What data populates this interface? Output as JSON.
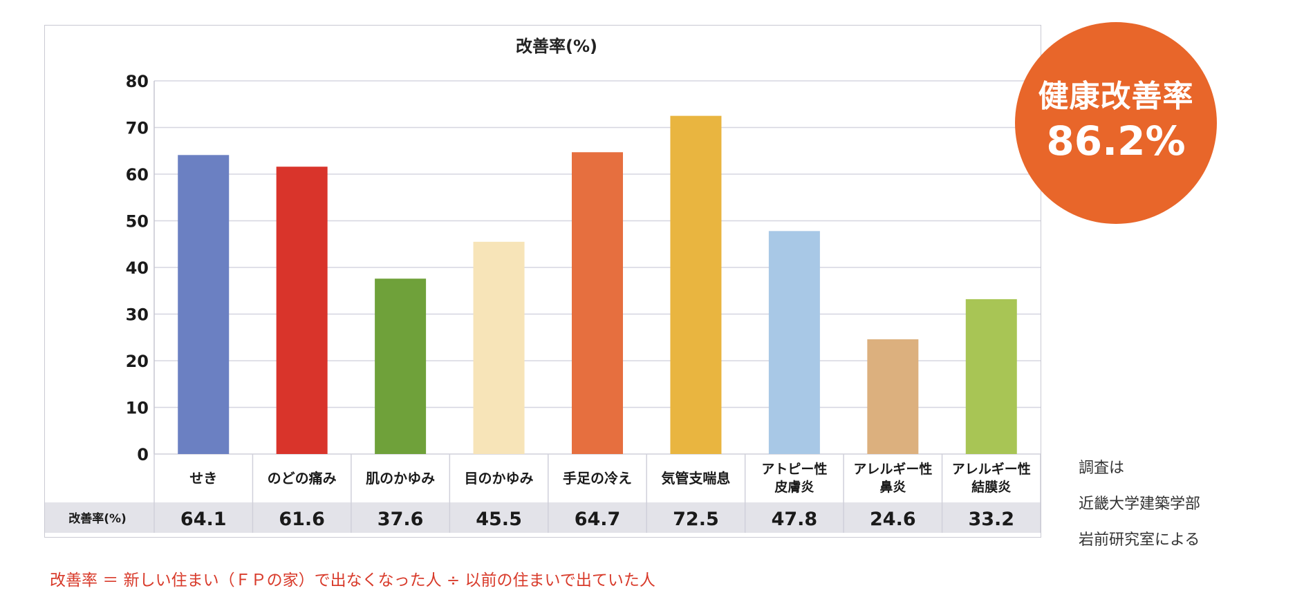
{
  "chart_data": {
    "type": "bar",
    "title": "改善率(%)",
    "categories": [
      [
        "せき"
      ],
      [
        "のどの痛み"
      ],
      [
        "肌のかゆみ"
      ],
      [
        "目のかゆみ"
      ],
      [
        "手足の冷え"
      ],
      [
        "気管支喘息"
      ],
      [
        "アトピー性",
        "皮膚炎"
      ],
      [
        "アレルギー性",
        "鼻炎"
      ],
      [
        "アレルギー性",
        "結膜炎"
      ]
    ],
    "values": [
      64.1,
      61.6,
      37.6,
      45.5,
      64.7,
      72.5,
      47.8,
      24.6,
      33.2
    ],
    "value_labels": [
      "64.1",
      "61.6",
      "37.6",
      "45.5",
      "64.7",
      "72.5",
      "47.8",
      "24.6",
      "33.2"
    ],
    "bar_colors": [
      "#6b80c2",
      "#d9342b",
      "#6fa13a",
      "#f7e4b8",
      "#e66f3f",
      "#e9b540",
      "#a8c8e6",
      "#dcb07e",
      "#a8c555"
    ],
    "ylim": [
      0,
      80
    ],
    "yticks": [
      "0",
      "10",
      "20",
      "30",
      "40",
      "50",
      "60",
      "70",
      "80"
    ],
    "grid": true,
    "table_row_label": "改善率(%)"
  },
  "badge": {
    "title": "健康改善率",
    "value": "86.2%",
    "color": "#e8662a"
  },
  "survey_note": [
    "調査は",
    "近畿大学建築学部",
    "岩前研究室による"
  ],
  "formula": "改善率 ＝ 新しい住まい（ＦＰの家）で出なくなった人 ÷ 以前の住まいで出ていた人"
}
